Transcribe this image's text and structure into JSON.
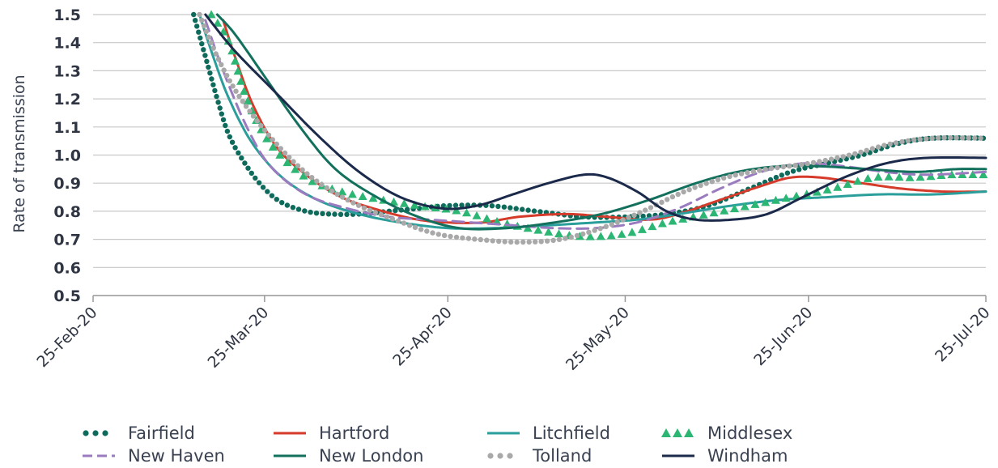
{
  "chart_data": {
    "type": "line",
    "title": "",
    "xlabel": "",
    "ylabel": "Rate of transmission",
    "ylim": [
      0.5,
      1.5
    ],
    "y_ticks": [
      "0.5",
      "0.6",
      "0.7",
      "0.8",
      "0.9",
      "1.0",
      "1.1",
      "1.2",
      "1.3",
      "1.4",
      "1.5"
    ],
    "x_ticks": [
      "25-Feb-20",
      "25-Mar-20",
      "25-Apr-20",
      "25-May-20",
      "25-Jun-20",
      "25-Jul-20"
    ],
    "x_range": [
      "2020-02-25",
      "2020-07-25"
    ],
    "grid": "horizontal",
    "legend_position": "bottom",
    "series": [
      {
        "name": "Fairfield",
        "style": "dotted",
        "color": "#0e6b5c",
        "points": [
          [
            "2020-03-13",
            1.5
          ],
          [
            "2020-03-15",
            1.35
          ],
          [
            "2020-03-17",
            1.2
          ],
          [
            "2020-03-19",
            1.07
          ],
          [
            "2020-03-22",
            0.96
          ],
          [
            "2020-03-25",
            0.88
          ],
          [
            "2020-03-28",
            0.83
          ],
          [
            "2020-04-01",
            0.8
          ],
          [
            "2020-04-05",
            0.79
          ],
          [
            "2020-04-10",
            0.79
          ],
          [
            "2020-04-15",
            0.8
          ],
          [
            "2020-04-20",
            0.81
          ],
          [
            "2020-04-25",
            0.82
          ],
          [
            "2020-05-02",
            0.82
          ],
          [
            "2020-05-10",
            0.8
          ],
          [
            "2020-05-18",
            0.78
          ],
          [
            "2020-05-25",
            0.78
          ],
          [
            "2020-06-01",
            0.79
          ],
          [
            "2020-06-08",
            0.82
          ],
          [
            "2020-06-15",
            0.88
          ],
          [
            "2020-06-22",
            0.94
          ],
          [
            "2020-06-28",
            0.97
          ],
          [
            "2020-07-04",
            1.0
          ],
          [
            "2020-07-10",
            1.04
          ],
          [
            "2020-07-16",
            1.06
          ],
          [
            "2020-07-25",
            1.06
          ]
        ]
      },
      {
        "name": "Hartford",
        "style": "solid",
        "color": "#d63a2a",
        "points": [
          [
            "2020-03-18",
            1.48
          ],
          [
            "2020-03-20",
            1.35
          ],
          [
            "2020-03-23",
            1.18
          ],
          [
            "2020-03-27",
            1.03
          ],
          [
            "2020-04-01",
            0.93
          ],
          [
            "2020-04-07",
            0.85
          ],
          [
            "2020-04-14",
            0.8
          ],
          [
            "2020-04-20",
            0.77
          ],
          [
            "2020-04-25",
            0.76
          ],
          [
            "2020-05-01",
            0.76
          ],
          [
            "2020-05-07",
            0.78
          ],
          [
            "2020-05-15",
            0.79
          ],
          [
            "2020-05-22",
            0.78
          ],
          [
            "2020-05-29",
            0.77
          ],
          [
            "2020-06-03",
            0.79
          ],
          [
            "2020-06-10",
            0.84
          ],
          [
            "2020-06-17",
            0.89
          ],
          [
            "2020-06-22",
            0.92
          ],
          [
            "2020-06-27",
            0.92
          ],
          [
            "2020-07-04",
            0.9
          ],
          [
            "2020-07-11",
            0.88
          ],
          [
            "2020-07-18",
            0.87
          ],
          [
            "2020-07-25",
            0.87
          ]
        ]
      },
      {
        "name": "Litchfield",
        "style": "solid",
        "color": "#2a9e9a",
        "points": [
          [
            "2020-03-14",
            1.5
          ],
          [
            "2020-03-16",
            1.37
          ],
          [
            "2020-03-19",
            1.2
          ],
          [
            "2020-03-23",
            1.04
          ],
          [
            "2020-03-28",
            0.92
          ],
          [
            "2020-04-03",
            0.84
          ],
          [
            "2020-04-10",
            0.79
          ],
          [
            "2020-04-17",
            0.76
          ],
          [
            "2020-04-25",
            0.74
          ],
          [
            "2020-05-03",
            0.74
          ],
          [
            "2020-05-12",
            0.75
          ],
          [
            "2020-05-20",
            0.76
          ],
          [
            "2020-05-27",
            0.77
          ],
          [
            "2020-06-03",
            0.79
          ],
          [
            "2020-06-12",
            0.82
          ],
          [
            "2020-06-20",
            0.84
          ],
          [
            "2020-06-28",
            0.85
          ],
          [
            "2020-07-07",
            0.86
          ],
          [
            "2020-07-16",
            0.86
          ],
          [
            "2020-07-25",
            0.87
          ]
        ]
      },
      {
        "name": "Middlesex",
        "style": "triangles",
        "color": "#2bb673",
        "points": [
          [
            "2020-03-16",
            1.5
          ],
          [
            "2020-03-19",
            1.4
          ],
          [
            "2020-03-22",
            1.2
          ],
          [
            "2020-03-26",
            1.04
          ],
          [
            "2020-04-01",
            0.92
          ],
          [
            "2020-04-07",
            0.87
          ],
          [
            "2020-04-14",
            0.84
          ],
          [
            "2020-04-20",
            0.82
          ],
          [
            "2020-04-27",
            0.8
          ],
          [
            "2020-05-04",
            0.76
          ],
          [
            "2020-05-11",
            0.73
          ],
          [
            "2020-05-18",
            0.71
          ],
          [
            "2020-05-25",
            0.72
          ],
          [
            "2020-06-01",
            0.76
          ],
          [
            "2020-06-08",
            0.79
          ],
          [
            "2020-06-15",
            0.82
          ],
          [
            "2020-06-22",
            0.85
          ],
          [
            "2020-06-29",
            0.88
          ],
          [
            "2020-07-06",
            0.92
          ],
          [
            "2020-07-13",
            0.92
          ],
          [
            "2020-07-19",
            0.93
          ],
          [
            "2020-07-25",
            0.93
          ]
        ]
      },
      {
        "name": "New Haven",
        "style": "dashed",
        "color": "#9b7bbf",
        "points": [
          [
            "2020-03-15",
            1.48
          ],
          [
            "2020-03-18",
            1.3
          ],
          [
            "2020-03-22",
            1.1
          ],
          [
            "2020-03-26",
            0.96
          ],
          [
            "2020-04-01",
            0.86
          ],
          [
            "2020-04-08",
            0.81
          ],
          [
            "2020-04-15",
            0.78
          ],
          [
            "2020-04-22",
            0.77
          ],
          [
            "2020-04-29",
            0.76
          ],
          [
            "2020-05-06",
            0.75
          ],
          [
            "2020-05-13",
            0.74
          ],
          [
            "2020-05-20",
            0.74
          ],
          [
            "2020-05-27",
            0.76
          ],
          [
            "2020-06-03",
            0.81
          ],
          [
            "2020-06-10",
            0.88
          ],
          [
            "2020-06-17",
            0.94
          ],
          [
            "2020-06-24",
            0.97
          ],
          [
            "2020-07-01",
            0.96
          ],
          [
            "2020-07-08",
            0.94
          ],
          [
            "2020-07-15",
            0.93
          ],
          [
            "2020-07-25",
            0.94
          ]
        ]
      },
      {
        "name": "New London",
        "style": "solid",
        "color": "#12705c",
        "points": [
          [
            "2020-03-17",
            1.5
          ],
          [
            "2020-03-20",
            1.43
          ],
          [
            "2020-03-25",
            1.28
          ],
          [
            "2020-03-31",
            1.1
          ],
          [
            "2020-04-06",
            0.95
          ],
          [
            "2020-04-13",
            0.85
          ],
          [
            "2020-04-20",
            0.78
          ],
          [
            "2020-04-27",
            0.74
          ],
          [
            "2020-05-05",
            0.74
          ],
          [
            "2020-05-13",
            0.76
          ],
          [
            "2020-05-21",
            0.79
          ],
          [
            "2020-05-29",
            0.84
          ],
          [
            "2020-06-06",
            0.9
          ],
          [
            "2020-06-13",
            0.94
          ],
          [
            "2020-06-20",
            0.96
          ],
          [
            "2020-06-27",
            0.96
          ],
          [
            "2020-07-05",
            0.95
          ],
          [
            "2020-07-13",
            0.94
          ],
          [
            "2020-07-20",
            0.95
          ],
          [
            "2020-07-25",
            0.95
          ]
        ]
      },
      {
        "name": "Tolland",
        "style": "dotted",
        "color": "#a9a9a9",
        "points": [
          [
            "2020-03-14",
            1.5
          ],
          [
            "2020-03-17",
            1.35
          ],
          [
            "2020-03-21",
            1.2
          ],
          [
            "2020-03-27",
            1.04
          ],
          [
            "2020-04-02",
            0.92
          ],
          [
            "2020-04-09",
            0.83
          ],
          [
            "2020-04-16",
            0.77
          ],
          [
            "2020-04-23",
            0.72
          ],
          [
            "2020-04-30",
            0.7
          ],
          [
            "2020-05-07",
            0.69
          ],
          [
            "2020-05-14",
            0.7
          ],
          [
            "2020-05-21",
            0.74
          ],
          [
            "2020-05-28",
            0.8
          ],
          [
            "2020-06-04",
            0.87
          ],
          [
            "2020-06-11",
            0.92
          ],
          [
            "2020-06-18",
            0.95
          ],
          [
            "2020-06-25",
            0.97
          ],
          [
            "2020-07-02",
            1.0
          ],
          [
            "2020-07-09",
            1.04
          ],
          [
            "2020-07-16",
            1.06
          ],
          [
            "2020-07-25",
            1.06
          ]
        ]
      },
      {
        "name": "Windham",
        "style": "solid",
        "color": "#1b2a4a",
        "points": [
          [
            "2020-03-15",
            1.5
          ],
          [
            "2020-03-20",
            1.37
          ],
          [
            "2020-03-27",
            1.22
          ],
          [
            "2020-04-03",
            1.07
          ],
          [
            "2020-04-10",
            0.94
          ],
          [
            "2020-04-17",
            0.85
          ],
          [
            "2020-04-24",
            0.81
          ],
          [
            "2020-04-30",
            0.82
          ],
          [
            "2020-05-06",
            0.86
          ],
          [
            "2020-05-12",
            0.9
          ],
          [
            "2020-05-18",
            0.93
          ],
          [
            "2020-05-22",
            0.92
          ],
          [
            "2020-05-27",
            0.87
          ],
          [
            "2020-06-01",
            0.8
          ],
          [
            "2020-06-06",
            0.77
          ],
          [
            "2020-06-12",
            0.77
          ],
          [
            "2020-06-18",
            0.79
          ],
          [
            "2020-06-24",
            0.85
          ],
          [
            "2020-07-01",
            0.92
          ],
          [
            "2020-07-08",
            0.97
          ],
          [
            "2020-07-15",
            0.99
          ],
          [
            "2020-07-25",
            0.99
          ]
        ]
      }
    ]
  }
}
